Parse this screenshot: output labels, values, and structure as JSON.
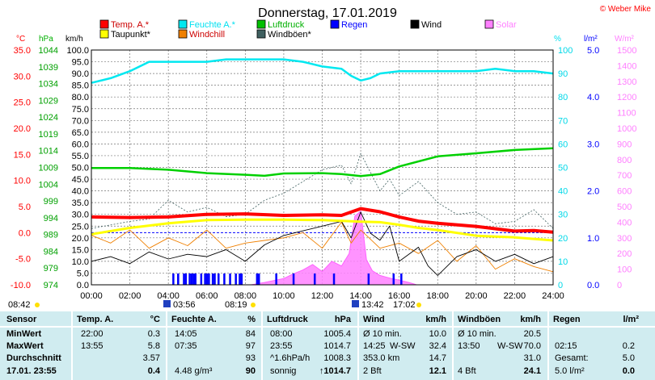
{
  "title": "Donnerstag, 17.01.2019",
  "copyright": "© Weber Mike",
  "legend": [
    {
      "label": "Temp. A.*",
      "color": "#ff0000"
    },
    {
      "label": "Feuchte A.*",
      "color": "#00e8f0"
    },
    {
      "label": "Luftdruck",
      "color": "#00c000"
    },
    {
      "label": "Wind",
      "color": "#000000"
    },
    {
      "label": "Regen",
      "color": "#0000ff"
    },
    {
      "label": "Solar",
      "color": "#ff80ff"
    },
    {
      "label": "Taupunkt*",
      "color": "#ffff00"
    },
    {
      "label": "Windchill",
      "color": "#f08000"
    },
    {
      "label": "Windböen*",
      "color": "#406060"
    }
  ],
  "axis_titles": {
    "temp": "°C",
    "pressure": "hPa",
    "wind": "km/h",
    "humidity": "%",
    "rain": "l/m²",
    "solar": "W/m²"
  },
  "sun_events": {
    "sunrise_night": "08:42",
    "twilight_start": "03:56",
    "sunrise": "08:19",
    "moonset": "13:42",
    "sunset": "17:02"
  },
  "chart_data": {
    "type": "line",
    "x_ticks": [
      "00:00",
      "02:00",
      "04:00",
      "06:00",
      "08:00",
      "10:00",
      "12:00",
      "14:00",
      "16:00",
      "18:00",
      "20:00",
      "22:00",
      "24:00"
    ],
    "axes": {
      "temp": {
        "unit": "°C",
        "range": [
          -10,
          35
        ],
        "ticks": [
          "35.0",
          "30.0",
          "25.0",
          "20.0",
          "15.0",
          "10.0",
          "5.0",
          "0.0",
          "-5.0",
          "-10.0"
        ]
      },
      "pressure": {
        "unit": "hPa",
        "range": [
          974,
          1044
        ],
        "ticks": [
          "1044",
          "1039",
          "1034",
          "1029",
          "1024",
          "1019",
          "1014",
          "1009",
          "1004",
          "999",
          "994",
          "989",
          "984",
          "979",
          "974"
        ]
      },
      "wind": {
        "unit": "km/h",
        "range": [
          0,
          100
        ],
        "ticks": [
          "100.0",
          "95.0",
          "90.0",
          "85.0",
          "80.0",
          "75.0",
          "70.0",
          "65.0",
          "60.0",
          "55.0",
          "50.0",
          "45.0",
          "40.0",
          "35.0",
          "30.0",
          "25.0",
          "20.0",
          "15.0",
          "10.0",
          "5.0",
          "0.0"
        ]
      },
      "humidity": {
        "unit": "%",
        "range": [
          0,
          100
        ],
        "ticks": [
          "100",
          "90",
          "80",
          "70",
          "60",
          "50",
          "40",
          "30",
          "20",
          "10",
          "0"
        ]
      },
      "rain": {
        "unit": "l/m²",
        "range": [
          0,
          5
        ],
        "ticks": [
          "5.0",
          "4.0",
          "3.0",
          "2.0",
          "1.0",
          "0.0"
        ]
      },
      "solar": {
        "unit": "W/m²",
        "range": [
          0,
          1500
        ],
        "ticks": [
          "1500",
          "1400",
          "1300",
          "1200",
          "1100",
          "1000",
          "900",
          "800",
          "700",
          "600",
          "500",
          "400",
          "300",
          "200",
          "100",
          "0"
        ]
      }
    },
    "grid": true,
    "series": [
      {
        "name": "Temp. A.*",
        "axis": "temp",
        "x": [
          0,
          2,
          4,
          6,
          8,
          10,
          12,
          13,
          14,
          15,
          16,
          17,
          18,
          20,
          22,
          23,
          24
        ],
        "y": [
          3.0,
          2.9,
          3.0,
          3.5,
          3.6,
          3.3,
          3.4,
          3.3,
          4.6,
          4.0,
          3.0,
          2.2,
          1.8,
          1.2,
          0.3,
          0.4,
          0.1
        ]
      },
      {
        "name": "Taupunkt*",
        "axis": "temp",
        "x": [
          0,
          2,
          4,
          6,
          8,
          10,
          12,
          14,
          15,
          16,
          17,
          18,
          20,
          22,
          24
        ],
        "y": [
          -0.3,
          0.9,
          1.8,
          2.4,
          2.5,
          2.5,
          2.4,
          2.1,
          2.0,
          1.5,
          0.9,
          0.5,
          -0.6,
          -0.9,
          -1.5
        ]
      },
      {
        "name": "Feuchte A.*",
        "axis": "humidity",
        "x": [
          0,
          1,
          2,
          3,
          4,
          6,
          7,
          8,
          10,
          11,
          12,
          13,
          13.5,
          14,
          14.5,
          15,
          16,
          18,
          20,
          21,
          22,
          23,
          24
        ],
        "y": [
          86,
          88,
          91,
          95,
          95,
          95,
          96,
          96,
          96,
          95,
          93,
          92,
          89,
          87,
          88,
          90,
          91,
          91,
          91,
          92,
          91,
          91,
          90
        ]
      },
      {
        "name": "Luftdruck",
        "axis": "pressure",
        "x": [
          0,
          2,
          4,
          6,
          8,
          9,
          10,
          12,
          13,
          14,
          15,
          16,
          18,
          20,
          22,
          24
        ],
        "y": [
          1008.8,
          1008.8,
          1008.3,
          1007.3,
          1006.8,
          1006.5,
          1007.2,
          1007.3,
          1007.0,
          1006.4,
          1007.0,
          1009.3,
          1012.3,
          1013.2,
          1014.2,
          1014.7
        ]
      },
      {
        "name": "Wind",
        "axis": "wind",
        "x": [
          0,
          1,
          2,
          3,
          4,
          5,
          6,
          7,
          8,
          9,
          10,
          11,
          12,
          13,
          13.5,
          14,
          14.5,
          15,
          15.5,
          16,
          17,
          17.5,
          18,
          19,
          20,
          21,
          22,
          23,
          24
        ],
        "y": [
          10,
          12,
          9,
          14,
          11,
          13,
          12,
          15,
          10,
          17,
          21,
          23,
          25,
          27,
          20,
          31,
          22,
          19,
          25,
          10,
          16,
          8,
          4,
          12,
          15,
          10,
          13,
          9,
          12
        ]
      },
      {
        "name": "Windchill",
        "axis": "temp",
        "x": [
          0,
          1,
          2,
          3,
          4,
          5,
          6,
          7,
          8,
          9,
          10,
          11,
          12,
          13,
          13.5,
          14,
          15,
          16,
          17,
          18,
          19,
          20,
          21,
          22,
          23,
          24
        ],
        "y": [
          -0.5,
          -2.0,
          0.5,
          -3.0,
          -1.0,
          -2.5,
          0.5,
          -3.0,
          -2.0,
          -1.5,
          -1.0,
          0.0,
          -3.0,
          2.0,
          -2.0,
          0.5,
          -3.0,
          -2.0,
          -4.0,
          -1.5,
          -5.5,
          -2.5,
          -7.0,
          -5.0,
          -6.5,
          -7.5
        ]
      },
      {
        "name": "Windböen*",
        "axis": "wind",
        "x": [
          0,
          2,
          3,
          4,
          5,
          6,
          7,
          8,
          9,
          10,
          11,
          12,
          13,
          13.5,
          14,
          14.5,
          15,
          15.5,
          16,
          17,
          18,
          19,
          20,
          21,
          22,
          23,
          24
        ],
        "y": [
          24,
          27,
          28,
          36,
          31,
          33,
          29,
          30,
          36,
          39,
          44,
          49,
          51,
          43,
          56,
          48,
          40,
          45,
          38,
          44,
          35,
          30,
          31,
          26,
          27,
          32,
          24
        ]
      },
      {
        "name": "Solar",
        "axis": "solar",
        "x": [
          8.3,
          9,
          10,
          10.5,
          11,
          11.5,
          12,
          12.5,
          13,
          13.4,
          13.7,
          14,
          14.3,
          14.6,
          15,
          15.3,
          15.6,
          16,
          16.5,
          16.9
        ],
        "y": [
          0,
          15,
          40,
          70,
          95,
          130,
          85,
          150,
          120,
          200,
          440,
          470,
          160,
          90,
          60,
          50,
          40,
          30,
          15,
          0
        ]
      },
      {
        "name": "Regen",
        "axis": "rain",
        "x": [
          4.25,
          4.5,
          4.8,
          5.1,
          5.4,
          5.7,
          6.0,
          6.3,
          6.6,
          6.9,
          7.2,
          7.5,
          7.8,
          8.6,
          9.6,
          10.5,
          11.6,
          12.6,
          14.4,
          15.7,
          16.1
        ],
        "y": [
          0.2,
          0.2,
          0.2,
          0.2,
          0.2,
          0.2,
          0.2,
          0.2,
          0.2,
          0.2,
          0.2,
          0.2,
          0.2,
          0.2,
          0.2,
          0.2,
          0.2,
          0.2,
          0.2,
          0.2,
          0.2
        ]
      }
    ],
    "extra_rain_hours": [
      4.5,
      4.9,
      5.2,
      5.3,
      5.9,
      6.1,
      6.4,
      7.7,
      8.7
    ]
  },
  "stats": {
    "columns": [
      {
        "title": "Sensor",
        "unit": ""
      },
      {
        "title": "Temp. A.",
        "unit": "°C"
      },
      {
        "title": "Feuchte A.",
        "unit": "%"
      },
      {
        "title": "Luftdruck",
        "unit": "hPa"
      },
      {
        "title": "Wind",
        "unit": "km/h"
      },
      {
        "title": "Windböen",
        "unit": "km/h"
      },
      {
        "title": "Regen",
        "unit": "l/m²"
      }
    ],
    "row_labels": [
      "MinWert",
      "MaxWert",
      "Durchschnitt",
      "17.01. 23:55"
    ],
    "temp": [
      [
        "22:00",
        "0.3"
      ],
      [
        "13:55",
        "5.8"
      ],
      [
        "",
        "3.57"
      ],
      [
        "",
        "0.4"
      ]
    ],
    "humidity": [
      [
        "14:05",
        "84"
      ],
      [
        "07:35",
        "97"
      ],
      [
        "",
        "93"
      ],
      [
        "4.48 g/m³",
        "90"
      ]
    ],
    "pressure": [
      [
        "08:00",
        "1005.4"
      ],
      [
        "23:55",
        "1014.7"
      ],
      [
        "^1.6hPa/h",
        "1008.3"
      ],
      [
        "sonnig",
        "↑1014.7"
      ]
    ],
    "wind": [
      [
        "Ø 10 min.",
        "",
        "10.0"
      ],
      [
        "14:25",
        "W-SW",
        "32.4"
      ],
      [
        "353.0 km",
        "",
        "14.7"
      ],
      [
        "2 Bft",
        "",
        "12.1"
      ]
    ],
    "gust": [
      [
        "Ø 10 min.",
        "",
        "20.5"
      ],
      [
        "13:50",
        "W-SW",
        "70.0"
      ],
      [
        "",
        "",
        "31.0"
      ],
      [
        "4 Bft",
        "",
        "24.1"
      ]
    ],
    "rain": [
      [
        "",
        ""
      ],
      [
        "02:15",
        "0.2"
      ],
      [
        "Gesamt:",
        "5.0"
      ],
      [
        "5.0 l/m²",
        "0.0"
      ]
    ]
  }
}
